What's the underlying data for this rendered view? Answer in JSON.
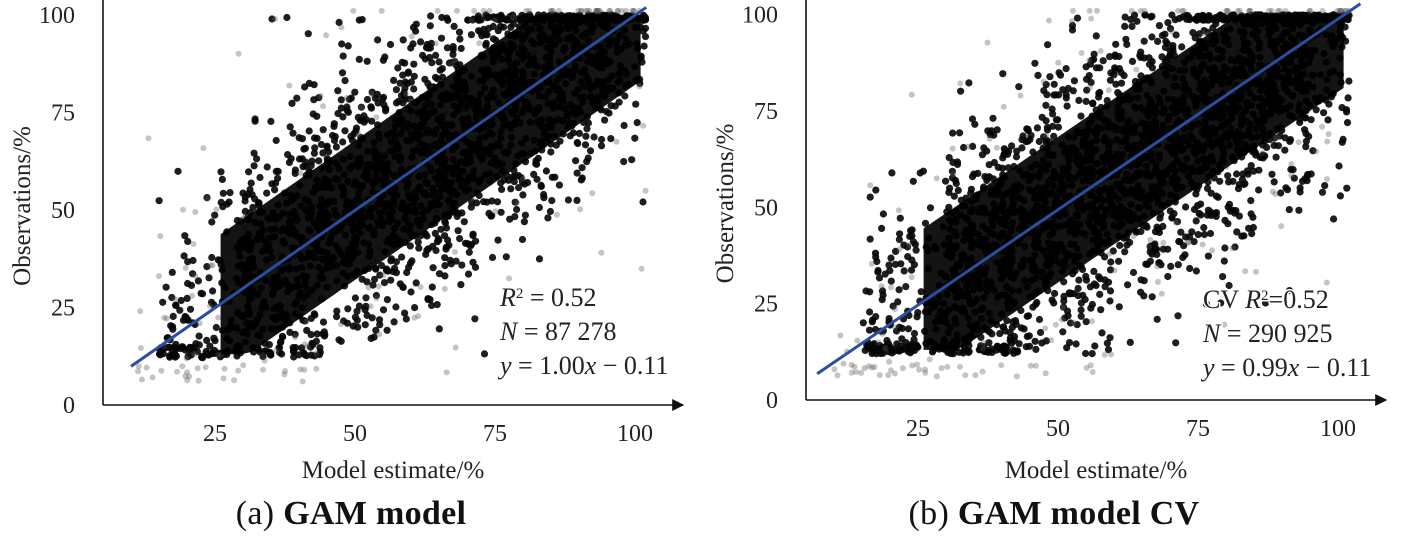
{
  "chart_data": [
    {
      "type": "scatter",
      "caption_prefix": "(a)",
      "caption_title": "GAM model",
      "xlabel": "Model estimate/%",
      "ylabel": "Observations/%",
      "xlim": [
        5,
        105
      ],
      "ylim": [
        0,
        102
      ],
      "xticks": [
        25,
        50,
        75,
        100
      ],
      "yticks": [
        0,
        25,
        50,
        75,
        100
      ],
      "fit_line": {
        "slope": 1.0,
        "intercept": -0.11,
        "x_range": [
          10,
          102
        ],
        "color": "#2a4fa0"
      },
      "stats": {
        "r2_prefix": "",
        "r2_symbol": "R",
        "r2_sup": "2",
        "r2_value": " = 0.52",
        "n_symbol": "N",
        "n_value": " = 87 278",
        "eq_y": "y",
        "eq_mid": " = 1.00",
        "eq_x": "x",
        "eq_tail": " − 0.11"
      },
      "point_cloud": {
        "approx_n": 87278,
        "lower_band_y": 12,
        "upper_band_y": 100
      }
    },
    {
      "type": "scatter",
      "caption_prefix": "(b)",
      "caption_title": "GAM model CV",
      "xlabel": "Model estimate/%",
      "ylabel": "Observations/%",
      "xlim": [
        5,
        105
      ],
      "ylim": [
        0,
        102
      ],
      "xticks": [
        25,
        50,
        75,
        100
      ],
      "yticks": [
        0,
        25,
        50,
        75,
        100
      ],
      "fit_line": {
        "slope": 0.99,
        "intercept": -0.11,
        "x_range": [
          7,
          104
        ],
        "color": "#2a4fa0"
      },
      "stats": {
        "r2_prefix": "CV ",
        "r2_symbol": "R",
        "r2_sup": "2",
        "r2_value": "=0.52",
        "n_symbol": "N",
        "n_value": " = 290 925",
        "eq_y": "y",
        "eq_mid": " = 0.99",
        "eq_x": "x",
        "eq_tail": " − 0.11"
      },
      "point_cloud": {
        "approx_n": 290925,
        "lower_band_y": 12,
        "upper_band_y": 100
      }
    }
  ]
}
